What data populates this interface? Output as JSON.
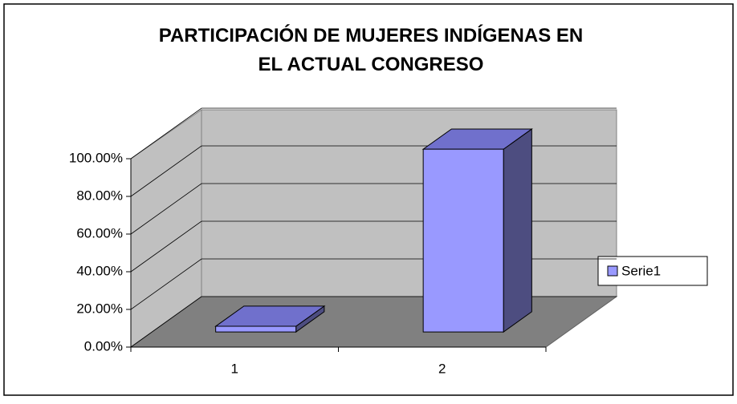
{
  "chart_data": {
    "type": "bar3d",
    "title": "PARTICIPACIÓN DE MUJERES INDÍGENAS EN EL ACTUAL CONGRESO",
    "categories": [
      "1",
      "2"
    ],
    "series": [
      {
        "name": "Serie1",
        "color": "#9999ff",
        "values": [
          3,
          97
        ]
      }
    ],
    "ylim": [
      0,
      100
    ],
    "yticks": [
      {
        "value": 0,
        "label": "0.00%"
      },
      {
        "value": 20,
        "label": "20.00%"
      },
      {
        "value": 40,
        "label": "40.00%"
      },
      {
        "value": 60,
        "label": "60.00%"
      },
      {
        "value": 80,
        "label": "80.00%"
      },
      {
        "value": 100,
        "label": "100.00%"
      }
    ],
    "grid": true,
    "legend": "right"
  }
}
